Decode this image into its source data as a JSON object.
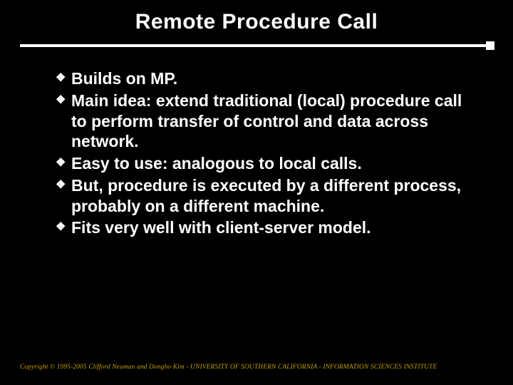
{
  "colors": {
    "background": "#000000",
    "text": "#ffffff",
    "rule": "#ffffff",
    "footer": "#c0a000"
  },
  "title": "Remote Procedure Call",
  "bullets": [
    "Builds on MP.",
    "Main idea: extend traditional (local) procedure call to perform transfer of control and data across network.",
    "Easy to use: analogous to local calls.",
    "But, procedure is executed by a different process, probably on a different machine.",
    "Fits very well with client-server model."
  ],
  "bullet_glyph": "❖",
  "footer": "Copyright © 1995-2005 Clifford Neuman and Dongho Kim - UNIVERSITY OF SOUTHERN CALIFORNIA - INFORMATION SCIENCES INSTITUTE"
}
